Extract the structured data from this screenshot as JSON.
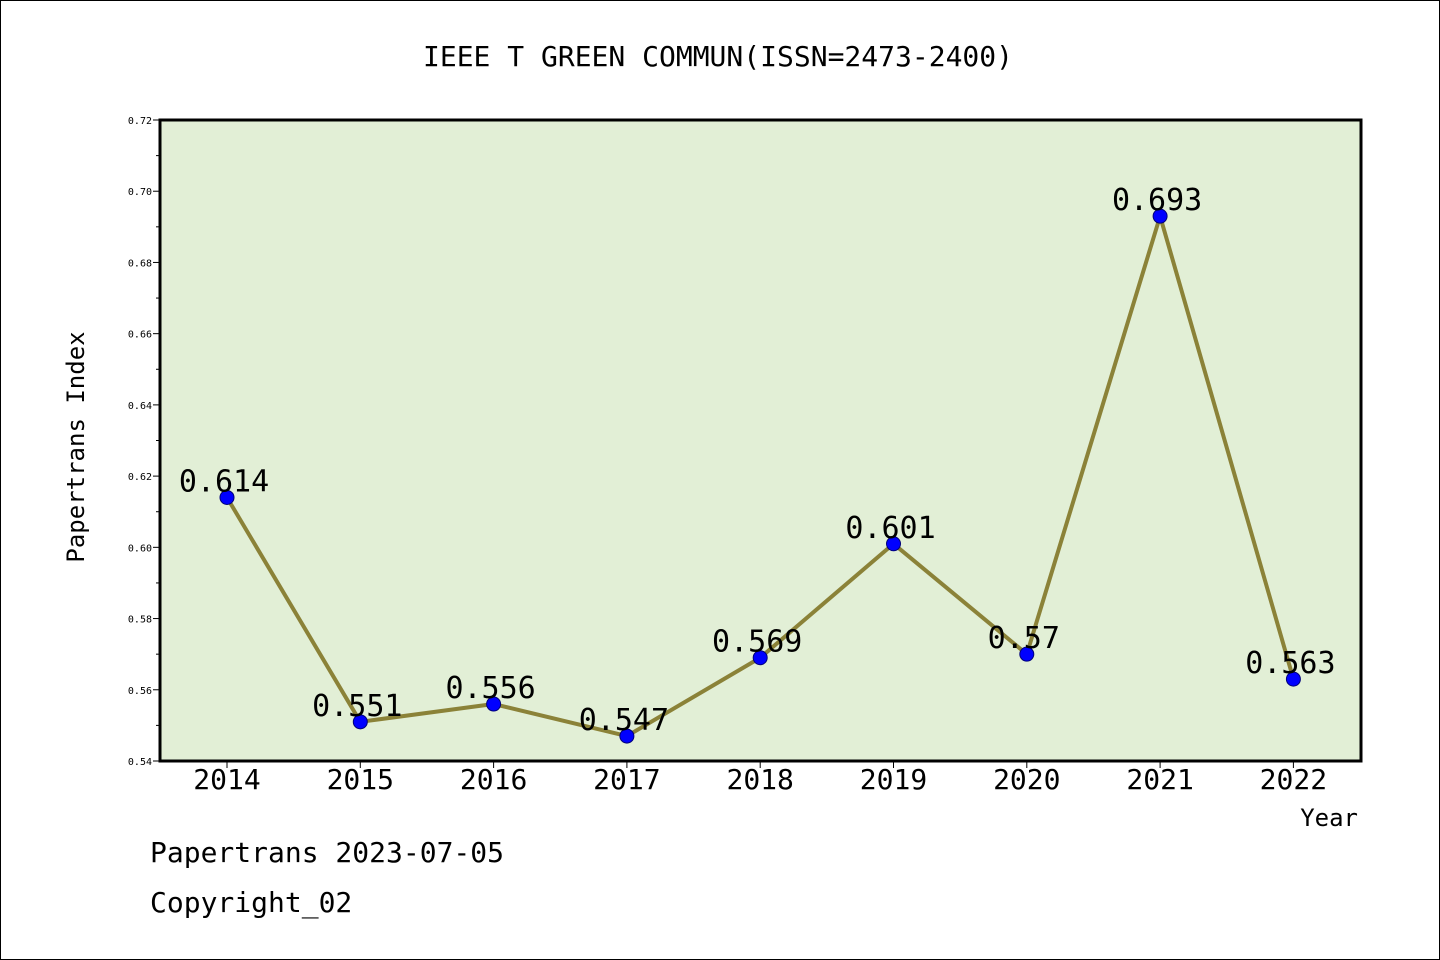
{
  "chart_data": {
    "type": "line",
    "title": "IEEE T GREEN COMMUN(ISSN=2473-2400)",
    "xlabel": "Year",
    "ylabel": "Papertrans Index",
    "categories": [
      "2014",
      "2015",
      "2016",
      "2017",
      "2018",
      "2019",
      "2020",
      "2021",
      "2022"
    ],
    "values": [
      0.614,
      0.551,
      0.556,
      0.547,
      0.569,
      0.601,
      0.57,
      0.693,
      0.563
    ],
    "value_labels": [
      "0.614",
      "0.551",
      "0.556",
      "0.547",
      "0.569",
      "0.601",
      "0.57",
      "0.693",
      "0.563"
    ],
    "ylim": [
      0.54,
      0.72
    ],
    "yticks": [
      "0.54",
      "0.56",
      "0.58",
      "0.60",
      "0.62",
      "0.64",
      "0.66",
      "0.68",
      "0.70",
      "0.72"
    ],
    "grid": false,
    "legend": "none",
    "colors": {
      "plot_background": "#e2efd6",
      "line": "#8b8238",
      "marker": "#0000ff"
    }
  },
  "footer": {
    "date_line": "Papertrans 2023-07-05",
    "copyright_line": "Copyright_02"
  }
}
